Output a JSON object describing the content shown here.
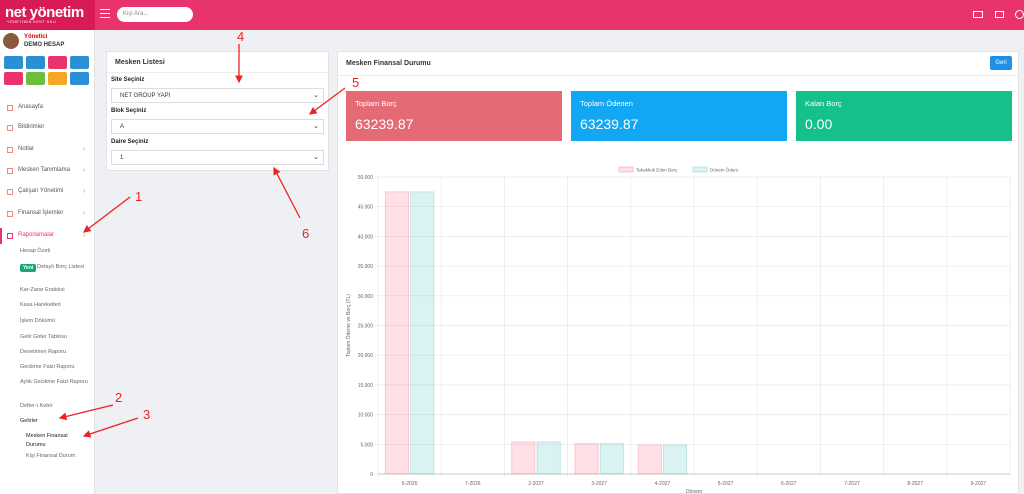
{
  "header": {
    "logo": "net yönetim",
    "tagline": "YÖNETİMİN KENT HALİ",
    "search_placeholder": "Kişi Ara..."
  },
  "user": {
    "role": "Yönetici",
    "name": "DEMO HESAP"
  },
  "menu": [
    "Anasayfa",
    "Bildirimler",
    "Notlar",
    "Mesken Tanımlama",
    "Çalışan Yönetimi",
    "Finansal İşlemler",
    "Raporlamalar"
  ],
  "report_menu": {
    "badge": "Yeni",
    "items": [
      "Hesap Özeti",
      "Detaylı Borç Listesi",
      "Kar-Zarar Endeksi",
      "Kasa Hareketleri",
      "İşlem Dökümü",
      "Gelir Gider Tablosu",
      "Denetimen Raporu",
      "Gecikme Faizi Raporu",
      "Aylık Gecikme Faizi Raporu",
      "Defter-i Kebir",
      "Gelirler"
    ]
  },
  "income_menu": [
    "Mesken Finansal Durumu",
    "Kişi Finansal Durum"
  ],
  "selection_panel": {
    "title": "Mesken Listesi",
    "fields": [
      {
        "label": "Site Seçiniz",
        "value": "NET GROUP YAPI"
      },
      {
        "label": "Blok Seçiniz",
        "value": "A"
      },
      {
        "label": "Daire Seçiniz",
        "value": "1"
      }
    ]
  },
  "finance_panel": {
    "title": "Mesken Finansal Durumu",
    "button": "Geri",
    "cards": [
      {
        "title": "Toplam Borç",
        "value": "63239.87"
      },
      {
        "title": "Toplam Ödenen",
        "value": "63239.87"
      },
      {
        "title": "Kalan Borç",
        "value": "0.00"
      }
    ]
  },
  "annotations": [
    "1",
    "2",
    "3",
    "4",
    "5",
    "6"
  ],
  "chart_data": {
    "type": "bar",
    "x_label": "Dönem",
    "y_label": "Toplam Ödeme ve Borç (TL)",
    "categories": [
      "6-2026",
      "7-2026",
      "2-2027",
      "3-2027",
      "4-2027",
      "5-2027",
      "6-2027",
      "7-2027",
      "8-2027",
      "9-2027"
    ],
    "series": [
      {
        "name": "Tahakkuk Eden Borç",
        "color": "#ff6384",
        "values": [
          47500,
          0,
          5400,
          5100,
          4900,
          0,
          0,
          0,
          0,
          0
        ]
      },
      {
        "name": "Dönem Ödeni",
        "color": "#4bc0c0",
        "values": [
          47500,
          0,
          5400,
          5100,
          4900,
          0,
          0,
          0,
          0,
          0
        ]
      }
    ],
    "ylim": [
      0,
      50000
    ],
    "yticks": [
      0,
      {
        "value": 5000,
        "label": "5.000"
      },
      {
        "value": 10000,
        "label": "10.000"
      },
      {
        "value": 15000,
        "label": "15.000"
      },
      {
        "value": 20000,
        "label": "20.000"
      },
      {
        "value": 25000,
        "label": "25.000"
      },
      {
        "value": 30000,
        "label": "30.000"
      },
      {
        "value": 35000,
        "label": "35.000"
      },
      {
        "value": 40000,
        "label": "40.000"
      },
      {
        "value": 45000,
        "label": "45.000"
      },
      {
        "value": 50000,
        "label": "50.000"
      }
    ],
    "grid": true,
    "legend": "top"
  }
}
